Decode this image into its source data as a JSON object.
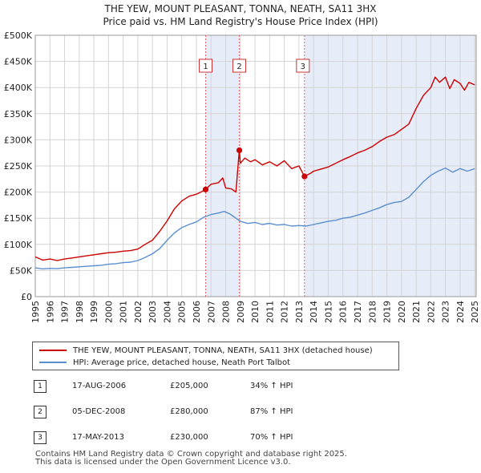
{
  "title_line1": "THE YEW, MOUNT PLEASANT, TONNA, NEATH, SA11 3HX",
  "title_line2": "Price paid vs. HM Land Registry's House Price Index (HPI)",
  "colors": {
    "property": "#cc0000",
    "hpi": "#5b8fd0",
    "shade": "#e6ecf8",
    "marker_line": "#dd6666"
  },
  "legend": {
    "property": "THE YEW, MOUNT PLEASANT, TONNA, NEATH, SA11 3HX (detached house)",
    "hpi": "HPI: Average price, detached house, Neath Port Talbot"
  },
  "sales": [
    {
      "num": "1",
      "date": "17-AUG-2006",
      "price": "£205,000",
      "hpi": "34% ↑ HPI"
    },
    {
      "num": "2",
      "date": "05-DEC-2008",
      "price": "£280,000",
      "hpi": "87% ↑ HPI"
    },
    {
      "num": "3",
      "date": "17-MAY-2013",
      "price": "£230,000",
      "hpi": "70% ↑ HPI"
    }
  ],
  "footer": {
    "line1": "Contains HM Land Registry data © Crown copyright and database right 2025.",
    "line2": "This data is licensed under the Open Government Licence v3.0."
  },
  "chart_data": {
    "type": "line",
    "title": "THE YEW, MOUNT PLEASANT, TONNA, NEATH, SA11 3HX — Price paid vs. HM Land Registry's House Price Index (HPI)",
    "xlim": [
      1995,
      2025.1
    ],
    "ylim": [
      0,
      500000
    ],
    "x_ticks": [
      "1995",
      "1996",
      "1997",
      "1998",
      "1999",
      "2000",
      "2001",
      "2002",
      "2003",
      "2004",
      "2005",
      "2006",
      "2007",
      "2008",
      "2009",
      "2010",
      "2011",
      "2012",
      "2013",
      "2014",
      "2015",
      "2016",
      "2017",
      "2018",
      "2019",
      "2020",
      "2021",
      "2022",
      "2023",
      "2024",
      "2025"
    ],
    "y_ticks": [
      {
        "value": 0,
        "label": "£0"
      },
      {
        "value": 50000,
        "label": "£50K"
      },
      {
        "value": 100000,
        "label": "£100K"
      },
      {
        "value": 150000,
        "label": "£150K"
      },
      {
        "value": 200000,
        "label": "£200K"
      },
      {
        "value": 250000,
        "label": "£250K"
      },
      {
        "value": 300000,
        "label": "£300K"
      },
      {
        "value": 350000,
        "label": "£350K"
      },
      {
        "value": 400000,
        "label": "£400K"
      },
      {
        "value": 450000,
        "label": "£450K"
      },
      {
        "value": 500000,
        "label": "£500K"
      }
    ],
    "shaded_ranges": [
      [
        2006.63,
        2008.93
      ],
      [
        2013.38,
        2025.1
      ]
    ],
    "sale_markers": [
      {
        "label": "1",
        "x": 2006.63,
        "y": 205000
      },
      {
        "label": "2",
        "x": 2008.93,
        "y": 280000
      },
      {
        "label": "3",
        "x": 2013.38,
        "y": 230000
      }
    ],
    "series": [
      {
        "name": "THE YEW, MOUNT PLEASANT, TONNA, NEATH, SA11 3HX (detached house)",
        "x": [
          1995,
          1995.5,
          1996,
          1996.5,
          1997,
          1997.5,
          1998,
          1998.5,
          1999,
          1999.5,
          2000,
          2000.5,
          2001,
          2001.5,
          2002,
          2002.5,
          2003,
          2003.5,
          2004,
          2004.5,
          2005,
          2005.5,
          2006,
          2006.3,
          2006.63,
          2007,
          2007.5,
          2007.8,
          2008,
          2008.4,
          2008.7,
          2008.93,
          2009,
          2009.3,
          2009.7,
          2010,
          2010.5,
          2011,
          2011.5,
          2012,
          2012.5,
          2013,
          2013.38,
          2013.8,
          2014,
          2014.5,
          2015,
          2015.5,
          2016,
          2016.5,
          2017,
          2017.5,
          2018,
          2018.5,
          2019,
          2019.5,
          2020,
          2020.5,
          2021,
          2021.5,
          2022,
          2022.3,
          2022.6,
          2023,
          2023.3,
          2023.6,
          2024,
          2024.3,
          2024.6,
          2025
        ],
        "y": [
          76000,
          70000,
          72000,
          69000,
          72000,
          74000,
          76000,
          78000,
          80000,
          82000,
          84000,
          85000,
          87000,
          88000,
          91000,
          100000,
          108000,
          125000,
          145000,
          168000,
          183000,
          192000,
          196000,
          200000,
          205000,
          215000,
          218000,
          227000,
          208000,
          206000,
          200000,
          280000,
          255000,
          265000,
          258000,
          262000,
          252000,
          258000,
          250000,
          260000,
          245000,
          250000,
          230000,
          236000,
          240000,
          244000,
          248000,
          255000,
          262000,
          268000,
          275000,
          280000,
          287000,
          297000,
          305000,
          310000,
          320000,
          330000,
          360000,
          385000,
          400000,
          420000,
          410000,
          420000,
          398000,
          415000,
          408000,
          395000,
          410000,
          405000
        ]
      },
      {
        "name": "HPI: Average price, detached house, Neath Port Talbot",
        "x": [
          1995,
          1995.5,
          1996,
          1996.5,
          1997,
          1997.5,
          1998,
          1998.5,
          1999,
          1999.5,
          2000,
          2000.5,
          2001,
          2001.5,
          2002,
          2002.5,
          2003,
          2003.5,
          2004,
          2004.5,
          2005,
          2005.5,
          2006,
          2006.5,
          2007,
          2007.5,
          2007.9,
          2008.3,
          2008.7,
          2009,
          2009.5,
          2010,
          2010.5,
          2011,
          2011.5,
          2012,
          2012.5,
          2013,
          2013.5,
          2014,
          2014.5,
          2015,
          2015.5,
          2016,
          2016.5,
          2017,
          2017.5,
          2018,
          2018.5,
          2019,
          2019.5,
          2020,
          2020.5,
          2021,
          2021.5,
          2022,
          2022.5,
          2023,
          2023.5,
          2024,
          2024.5,
          2025
        ],
        "y": [
          55000,
          53000,
          54000,
          53500,
          55000,
          56000,
          57000,
          58000,
          59000,
          60000,
          62000,
          63000,
          65000,
          66000,
          69000,
          75000,
          82000,
          92000,
          108000,
          122000,
          132000,
          138000,
          143000,
          152000,
          157000,
          160000,
          163000,
          158000,
          150000,
          144000,
          140000,
          142000,
          138000,
          140000,
          137000,
          138000,
          135000,
          136000,
          135000,
          138000,
          141000,
          144000,
          146000,
          150000,
          152000,
          156000,
          160000,
          165000,
          170000,
          176000,
          180000,
          182000,
          190000,
          205000,
          220000,
          232000,
          240000,
          246000,
          238000,
          245000,
          240000,
          245000
        ]
      }
    ]
  }
}
